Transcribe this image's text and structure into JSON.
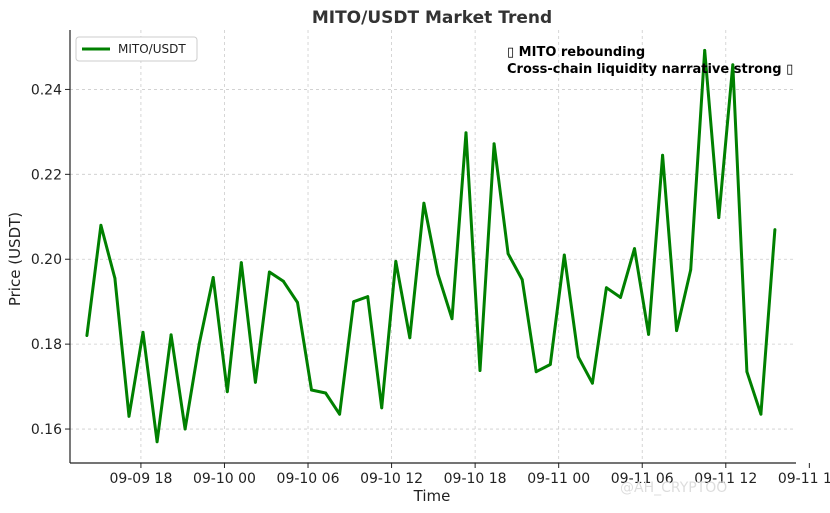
{
  "chart_data": {
    "type": "line",
    "title": "MITO/USDT Market Trend",
    "xlabel": "Time",
    "ylabel": "Price (USDT)",
    "ylim": [
      0.152,
      0.254
    ],
    "xlim": [
      -1.2,
      50.5
    ],
    "grid": true,
    "legend_position": "top-left",
    "x_ticks": [
      {
        "pos": 3.85,
        "label": "09-09 18"
      },
      {
        "pos": 9.8,
        "label": "09-10 00"
      },
      {
        "pos": 15.75,
        "label": "09-10 06"
      },
      {
        "pos": 21.7,
        "label": "09-10 12"
      },
      {
        "pos": 27.65,
        "label": "09-10 18"
      },
      {
        "pos": 33.6,
        "label": "09-11 00"
      },
      {
        "pos": 39.55,
        "label": "09-11 06"
      },
      {
        "pos": 45.5,
        "label": "09-11 12"
      },
      {
        "pos": 51.45,
        "label": "09-11 18"
      }
    ],
    "y_ticks": [
      0.16,
      0.18,
      0.2,
      0.22,
      0.24
    ],
    "y_tick_labels": [
      "0.16",
      "0.18",
      "0.20",
      "0.22",
      "0.24"
    ],
    "series": [
      {
        "name": "MITO/USDT",
        "color": "#008000",
        "values": [
          0.182,
          0.208,
          0.1955,
          0.163,
          0.1828,
          0.157,
          0.1822,
          0.16,
          0.18,
          0.1957,
          0.1688,
          0.1992,
          0.171,
          0.197,
          0.1948,
          0.1898,
          0.1692,
          0.1685,
          0.1635,
          0.19,
          0.1912,
          0.165,
          0.1995,
          0.1815,
          0.2132,
          0.1965,
          0.186,
          0.2298,
          0.1738,
          0.2272,
          0.2013,
          0.1952,
          0.1735,
          0.1752,
          0.201,
          0.177,
          0.1708,
          0.1933,
          0.191,
          0.2025,
          0.1823,
          0.2245,
          0.1832,
          0.1975,
          0.2492,
          0.2098,
          0.2458,
          0.1735,
          0.1635,
          0.207
        ]
      }
    ],
    "annotations": [
      {
        "line1": "▯ MITO rebounding",
        "line2": "Cross-chain liquidity narrative strong ▯"
      }
    ]
  },
  "watermark": "@AH_CRYPTOO"
}
